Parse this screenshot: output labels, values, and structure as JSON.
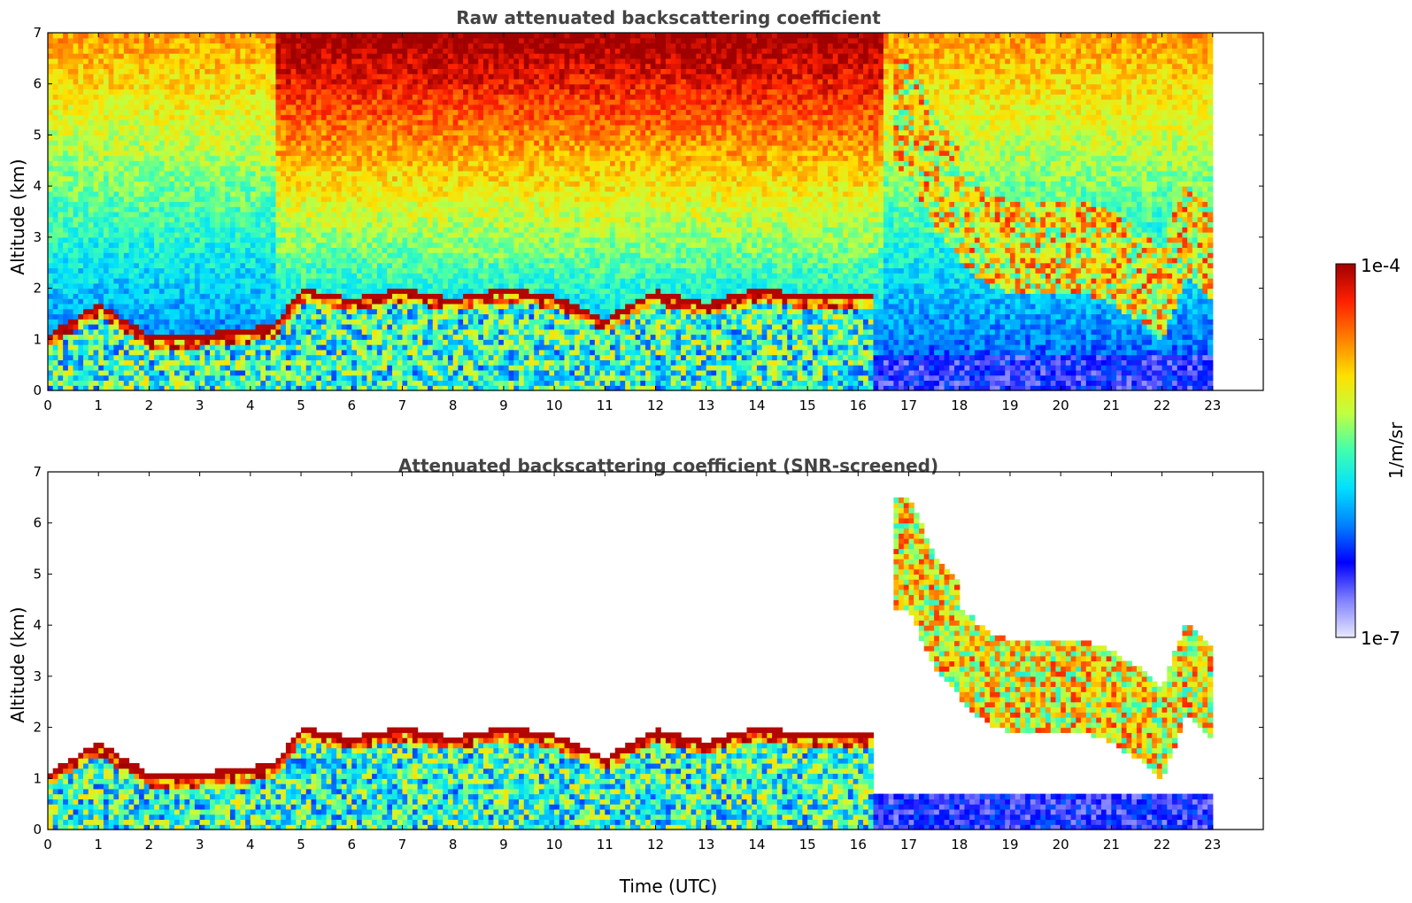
{
  "chart_data": [
    {
      "type": "heatmap",
      "title": "Raw attenuated backscattering coefficient",
      "xlabel": "",
      "ylabel": "Altitude (km)",
      "xlim": [
        0,
        24
      ],
      "ylim": [
        0,
        7
      ],
      "xticks": [
        "0",
        "1",
        "2",
        "3",
        "4",
        "5",
        "6",
        "7",
        "8",
        "9",
        "10",
        "11",
        "12",
        "13",
        "14",
        "15",
        "16",
        "17",
        "18",
        "19",
        "20",
        "21",
        "22",
        "23"
      ],
      "yticks": [
        "0",
        "1",
        "2",
        "3",
        "4",
        "5",
        "6",
        "7"
      ],
      "data_end_x": 23,
      "screened": false,
      "layers": [
        {
          "name": "boundary-layer-top",
          "x": [
            0,
            1,
            2,
            3,
            4,
            4.5,
            5,
            6,
            7,
            8,
            9,
            10,
            11,
            12,
            13,
            14,
            15,
            16,
            16.3
          ],
          "y": [
            1.0,
            1.6,
            1.0,
            1.0,
            1.1,
            1.2,
            1.9,
            1.7,
            1.9,
            1.7,
            1.9,
            1.75,
            1.3,
            1.85,
            1.6,
            1.9,
            1.75,
            1.75,
            1.8
          ]
        },
        {
          "name": "cirrus-descending",
          "x": [
            17,
            17.5,
            18,
            18.5,
            19,
            19.5,
            20,
            20.5,
            21,
            21.5,
            22,
            22.5,
            23
          ],
          "y": [
            4.3,
            3.2,
            2.6,
            2.1,
            1.9,
            1.9,
            1.9,
            1.9,
            1.7,
            1.4,
            1.0,
            2.3,
            1.8
          ]
        }
      ]
    },
    {
      "type": "heatmap",
      "title": "Attenuated backscattering coefficient (SNR-screened)",
      "xlabel": "Time (UTC)",
      "ylabel": "Altitude (km)",
      "xlim": [
        0,
        24
      ],
      "ylim": [
        0,
        7
      ],
      "xticks": [
        "0",
        "1",
        "2",
        "3",
        "4",
        "5",
        "6",
        "7",
        "8",
        "9",
        "10",
        "11",
        "12",
        "13",
        "14",
        "15",
        "16",
        "17",
        "18",
        "19",
        "20",
        "21",
        "22",
        "23"
      ],
      "yticks": [
        "0",
        "1",
        "2",
        "3",
        "4",
        "5",
        "6",
        "7"
      ],
      "data_end_x": 23,
      "screened": true,
      "layers": [
        {
          "name": "boundary-layer-top",
          "x": [
            0,
            1,
            2,
            3,
            4,
            4.5,
            5,
            6,
            7,
            8,
            9,
            10,
            11,
            12,
            13,
            14,
            15,
            16,
            16.3
          ],
          "y": [
            1.0,
            1.6,
            1.0,
            1.0,
            1.1,
            1.2,
            1.9,
            1.7,
            1.9,
            1.7,
            1.9,
            1.75,
            1.3,
            1.85,
            1.6,
            1.9,
            1.75,
            1.75,
            1.8
          ]
        },
        {
          "name": "cirrus-descending",
          "x": [
            17,
            17.5,
            18,
            18.5,
            19,
            19.5,
            20,
            20.5,
            21,
            21.5,
            22,
            22.5,
            23
          ],
          "y": [
            4.3,
            3.2,
            2.6,
            2.1,
            1.9,
            1.9,
            1.9,
            1.9,
            1.7,
            1.4,
            1.0,
            2.3,
            1.8
          ]
        }
      ]
    }
  ],
  "colorbar": {
    "label": "1/m/sr",
    "max_label": "1e-4",
    "min_label": "1e-7",
    "scale": "log",
    "colormap": [
      "#e8e8ff",
      "#8080ff",
      "#0000ff",
      "#0080ff",
      "#00e0ff",
      "#40ffb0",
      "#c0ff40",
      "#ffe000",
      "#ff8000",
      "#ff2000",
      "#a00000"
    ]
  }
}
